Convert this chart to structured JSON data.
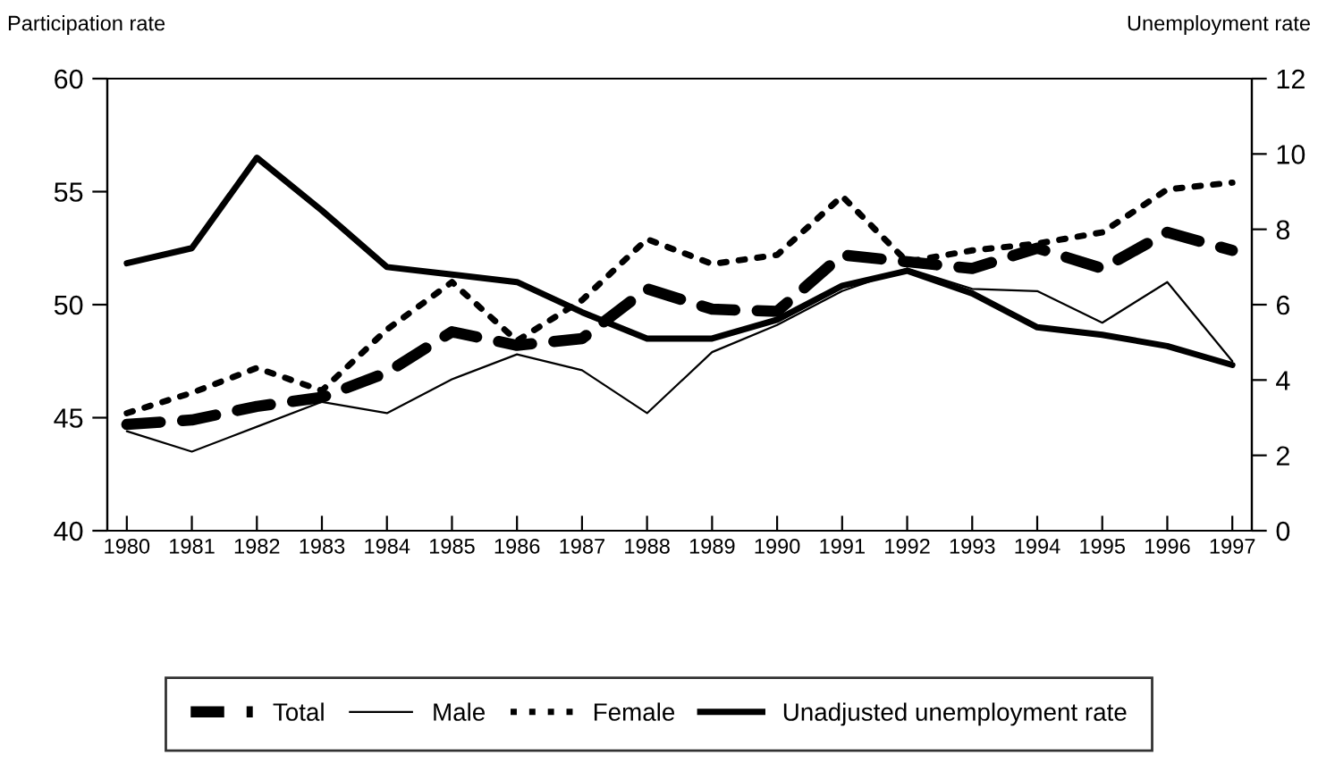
{
  "chart_data": {
    "type": "line",
    "ylabel": "Participation rate",
    "y2label": "Unemployment rate",
    "categories": [
      "1980",
      "1981",
      "1982",
      "1983",
      "1984",
      "1985",
      "1986",
      "1987",
      "1988",
      "1989",
      "1990",
      "1991",
      "1992",
      "1993",
      "1994",
      "1995",
      "1996",
      "1997"
    ],
    "series": [
      {
        "name": "Total",
        "color": "#000000",
        "line_style": "dashed",
        "values": [
          44.7,
          44.9,
          45.5,
          45.9,
          47.0,
          48.8,
          48.2,
          48.5,
          50.7,
          49.8,
          49.7,
          52.2,
          51.9,
          51.6,
          52.5,
          51.6,
          53.2,
          52.4
        ]
      },
      {
        "name": "Male",
        "color": "#000000",
        "line_style": "solid",
        "values": [
          44.4,
          43.5,
          44.6,
          45.7,
          45.2,
          46.7,
          47.8,
          47.1,
          45.2,
          47.9,
          49.1,
          50.6,
          51.6,
          50.7,
          50.6,
          49.2,
          51.0,
          47.5
        ]
      },
      {
        "name": "Female",
        "color": "#000000",
        "line_style": "dotted",
        "values": [
          45.2,
          46.1,
          47.2,
          46.2,
          48.9,
          51.0,
          48.4,
          50.2,
          52.9,
          51.8,
          52.2,
          54.8,
          51.9,
          52.4,
          52.7,
          53.2,
          55.1,
          55.4
        ]
      },
      {
        "name": "Unadjusted unemployment rate",
        "color": "#000000",
        "line_style": "solid",
        "axis": "y2",
        "values": [
          7.1,
          7.5,
          9.9,
          8.5,
          7.0,
          6.8,
          6.6,
          5.8,
          5.1,
          5.1,
          5.6,
          6.5,
          6.9,
          6.3,
          5.4,
          5.2,
          4.9,
          4.4
        ]
      }
    ],
    "ylim": [
      40,
      60
    ],
    "yticks": [
      40,
      45,
      50,
      55,
      60
    ],
    "y2lim": [
      0,
      12
    ],
    "y2ticks": [
      0,
      2,
      4,
      6,
      8,
      10,
      12
    ],
    "grid": false,
    "legend": "bottom",
    "marker": "none"
  }
}
